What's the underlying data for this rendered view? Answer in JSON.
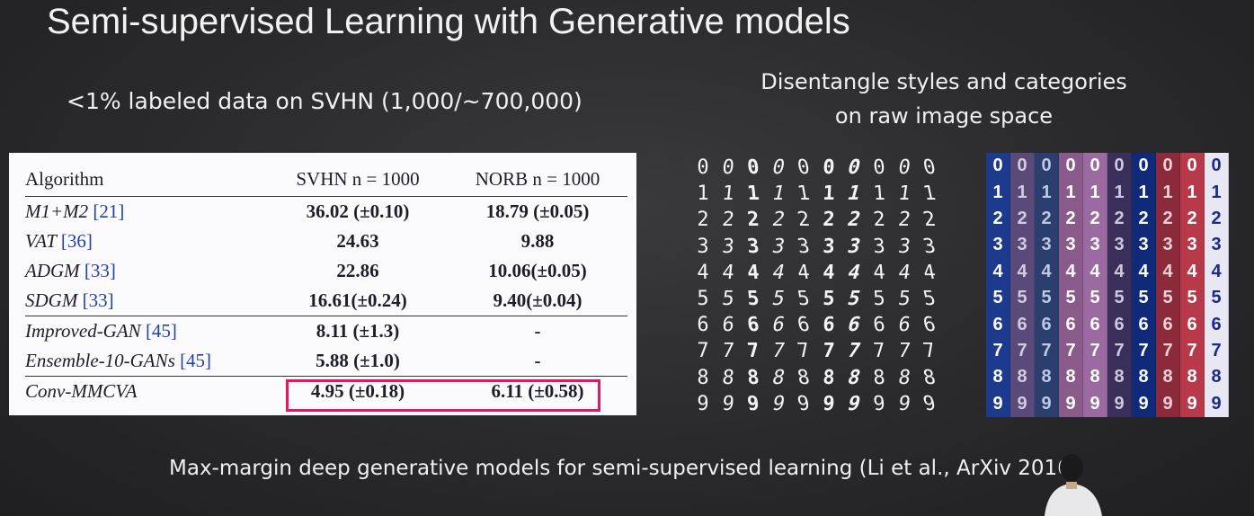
{
  "slide": {
    "title": "Semi-supervised Learning with Generative models",
    "subtitle_left": "<1% labeled data on SVHN (1,000/~700,000)",
    "subtitle_right_line1": "Disentangle styles and categories",
    "subtitle_right_line2": "on raw image space",
    "footer": "Max-margin deep generative models for semi-supervised learning (Li et al., ArXiv 2016)"
  },
  "table": {
    "headers": [
      "Algorithm",
      "SVHN n = 1000",
      "NORB n = 1000"
    ],
    "rows": [
      {
        "algorithm": "M1+M2",
        "ref": "[21]",
        "svhn": "36.02 (±0.10)",
        "norb": "18.79 (±0.05)"
      },
      {
        "algorithm": "VAT",
        "ref": "[36]",
        "svhn": "24.63",
        "norb": "9.88"
      },
      {
        "algorithm": "ADGM",
        "ref": "[33]",
        "svhn": "22.86",
        "norb": "10.06(±0.05)"
      },
      {
        "algorithm": "SDGM",
        "ref": "[33]",
        "svhn": "16.61(±0.24)",
        "norb": "9.40(±0.04)"
      },
      {
        "algorithm": "Improved-GAN",
        "ref": "[45]",
        "svhn": "8.11 (±1.3)",
        "norb": "-"
      },
      {
        "algorithm": "Ensemble-10-GANs",
        "ref": "[45]",
        "svhn": "5.88 (±1.0)",
        "norb": "-"
      },
      {
        "algorithm": "Conv-MMCVA",
        "ref": "",
        "svhn": "4.95 (±0.18)",
        "norb": "6.11 (±0.58)"
      }
    ]
  },
  "mnist_samples": {
    "rows": [
      "0",
      "1",
      "2",
      "3",
      "4",
      "5",
      "6",
      "7",
      "8",
      "9"
    ],
    "columns": 10
  },
  "svhn_samples": {
    "rows": [
      "0",
      "1",
      "2",
      "3",
      "4",
      "5",
      "6",
      "7",
      "8",
      "9"
    ],
    "column_colors": [
      "#1c3a8e",
      "#5a4a7a",
      "#2a3f6e",
      "#8a5a8a",
      "#9a6aa0",
      "#3a2f5a",
      "#102a7a",
      "#8a2a3a",
      "#b83a4a",
      "#e8e8f4"
    ],
    "column_text_colors": [
      "#ffffff",
      "#d8c8e0",
      "#c0c8e0",
      "#ffffff",
      "#ffffff",
      "#d0c8e0",
      "#ffffff",
      "#f0d0d8",
      "#ffffff",
      "#1a2a8a"
    ]
  }
}
